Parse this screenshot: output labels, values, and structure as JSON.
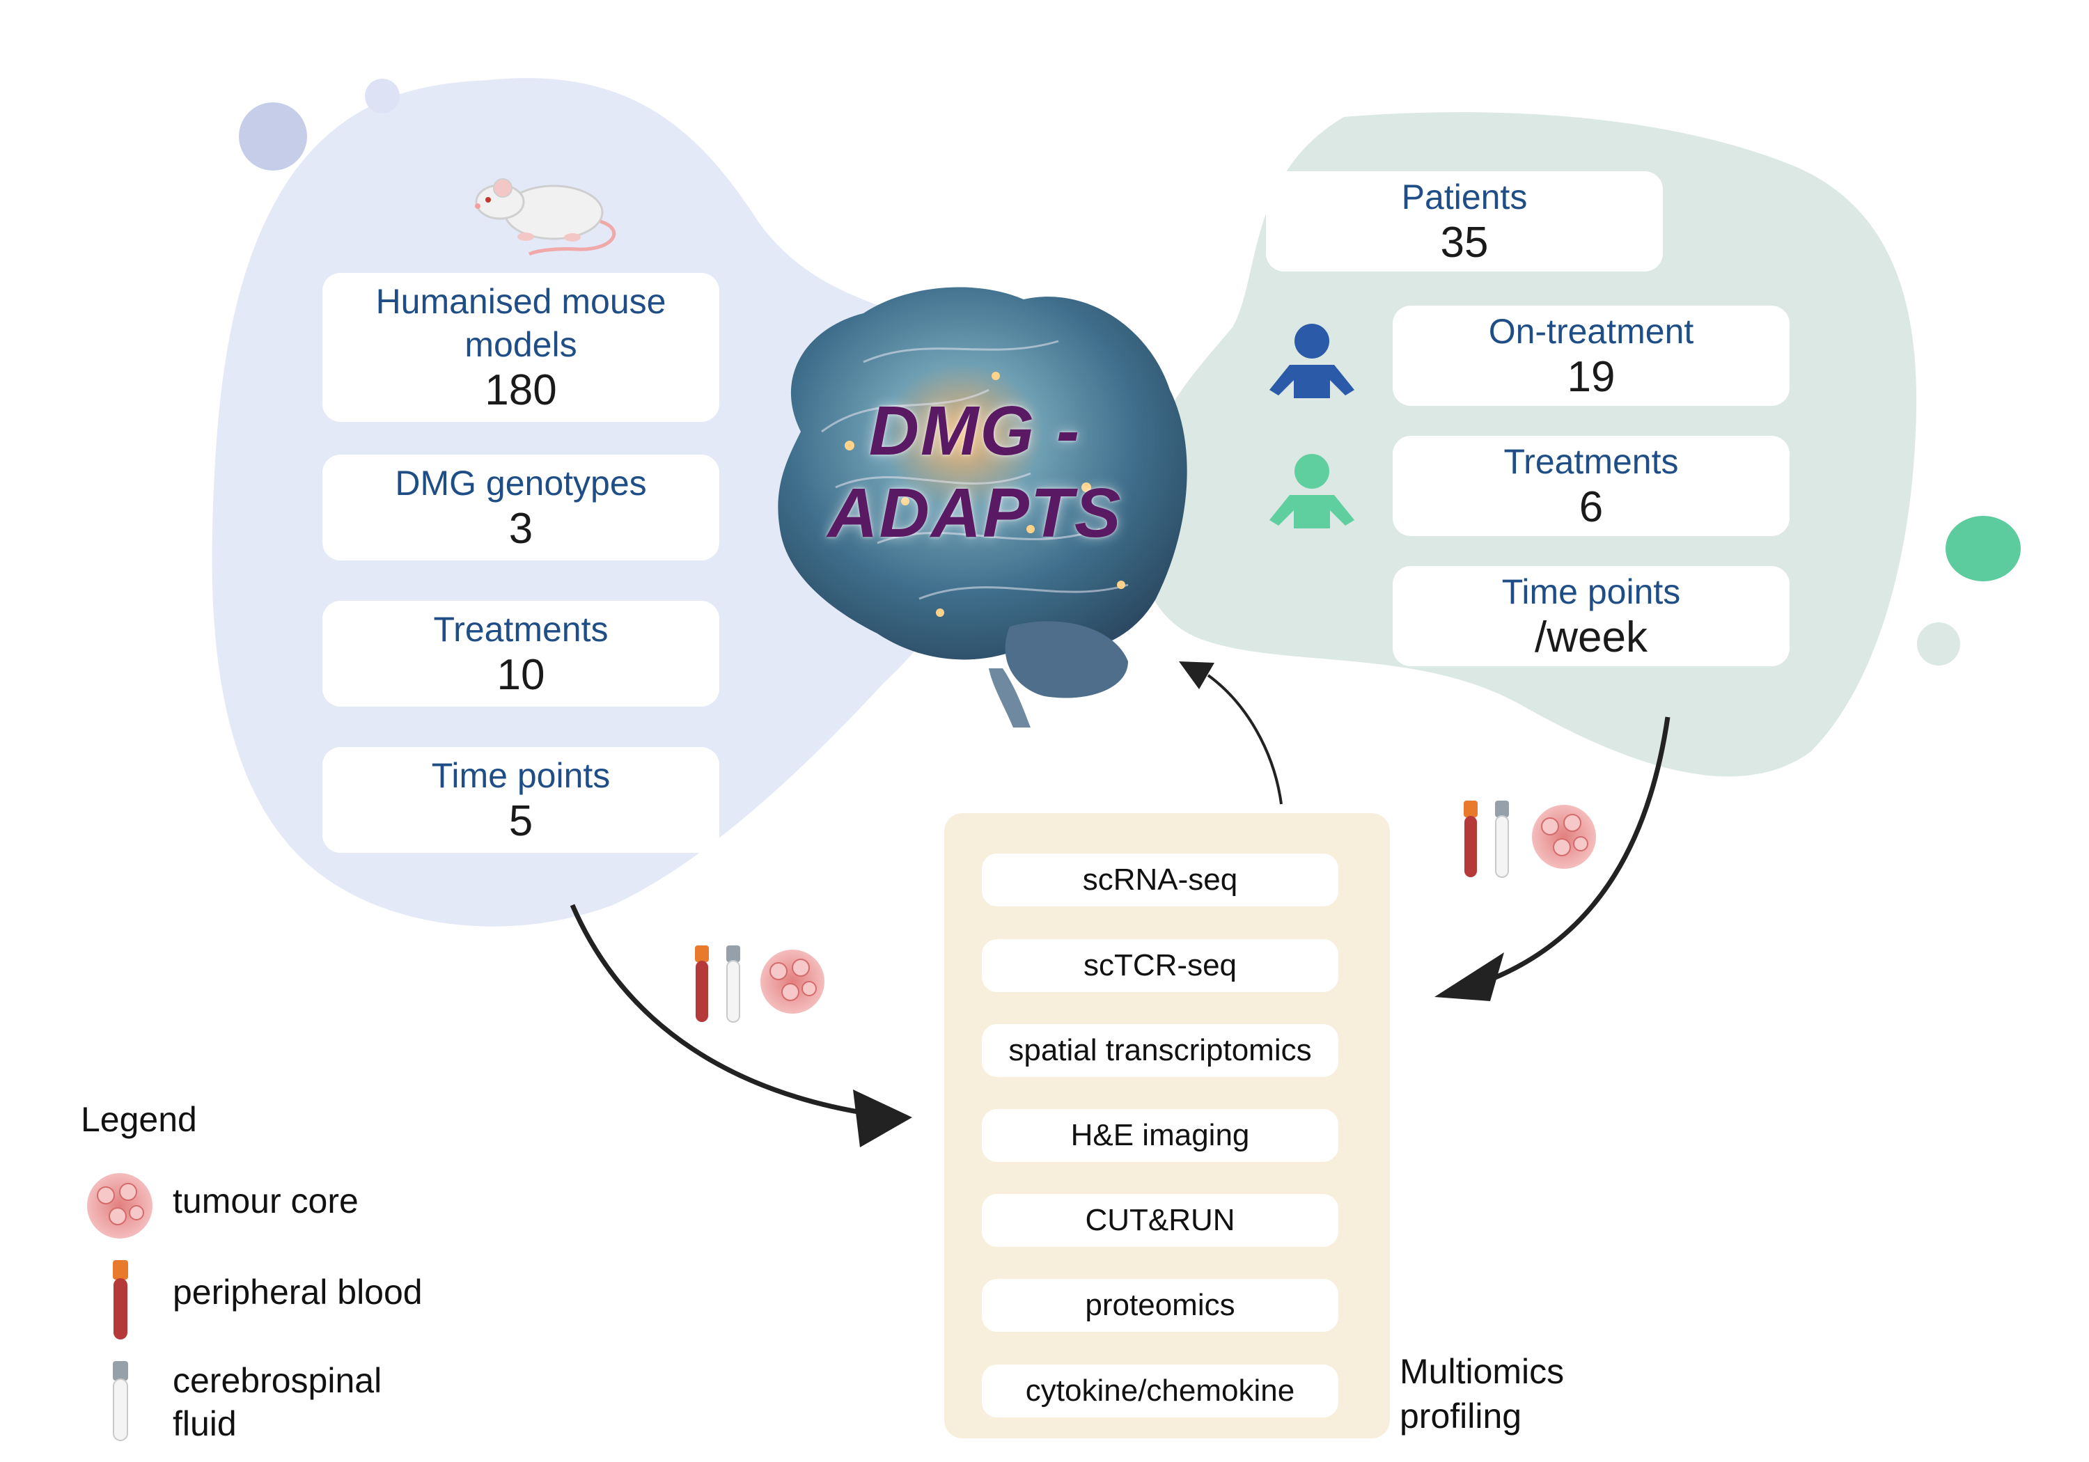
{
  "title": {
    "line1": "DMG -",
    "line2": "ADAPTS"
  },
  "mouse_panel": {
    "cards": [
      {
        "label": "Humanised mouse models",
        "value": "180"
      },
      {
        "label": "DMG genotypes",
        "value": "3"
      },
      {
        "label": "Treatments",
        "value": "10"
      },
      {
        "label": "Time points",
        "value": "5"
      }
    ]
  },
  "patient_panel": {
    "patients": {
      "label": "Patients",
      "value": "35"
    },
    "on_treatment": {
      "label": "On-treatment",
      "value": "19"
    },
    "treatments": {
      "label": "Treatments",
      "value": "6"
    },
    "time_points": {
      "label": "Time points",
      "value": "/week"
    }
  },
  "multiomics": {
    "items": [
      "scRNA-seq",
      "scTCR-seq",
      "spatial transcriptomics",
      "H&E imaging",
      "CUT&RUN",
      "proteomics",
      "cytokine/chemokine"
    ],
    "caption_line1": "Multiomics",
    "caption_line2": "profiling"
  },
  "legend": {
    "title": "Legend",
    "tumour": "tumour core",
    "blood": "peripheral blood",
    "csf_line1": "cerebrospinal",
    "csf_line2": "fluid"
  },
  "colors": {
    "mouse_blob": "#e4e9f8",
    "patient_blob": "#dbe8e3",
    "omics_panel": "#f7efdc",
    "label_blue": "#1f4e87",
    "person_blue": "#2a5aa8",
    "person_green": "#5fcfa0",
    "title_purple": "#5a1a63"
  }
}
